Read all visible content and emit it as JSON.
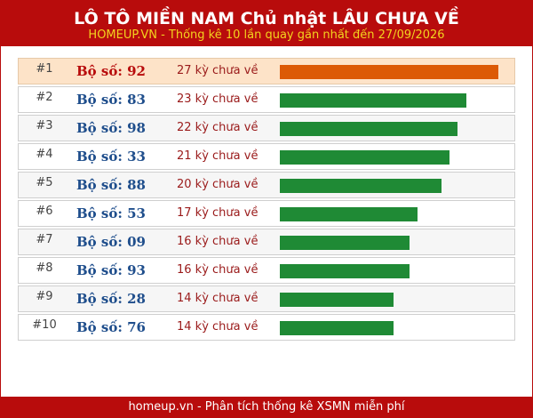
{
  "header": {
    "title": "LÔ TÔ MIỀN NAM Chủ nhật LÂU CHƯA VỀ",
    "subtitle": "HOMEUP.VN - Thống kê 10 lần quay gần nhất đến 27/09/2026"
  },
  "colors": {
    "brand": "#b80c0c",
    "subtitle": "#f3d31e",
    "top_bar": "#dc5a05",
    "bar": "#1f8a35",
    "top_row_bg": "#fde3c8"
  },
  "rows": [
    {
      "rank": "#1",
      "label": "Bộ số: 92",
      "gap": "27 kỳ chưa về",
      "days": 27
    },
    {
      "rank": "#2",
      "label": "Bộ số: 83",
      "gap": "23 kỳ chưa về",
      "days": 23
    },
    {
      "rank": "#3",
      "label": "Bộ số: 98",
      "gap": "22 kỳ chưa về",
      "days": 22
    },
    {
      "rank": "#4",
      "label": "Bộ số: 33",
      "gap": "21 kỳ chưa về",
      "days": 21
    },
    {
      "rank": "#5",
      "label": "Bộ số: 88",
      "gap": "20 kỳ chưa về",
      "days": 20
    },
    {
      "rank": "#6",
      "label": "Bộ số: 53",
      "gap": "17 kỳ chưa về",
      "days": 17
    },
    {
      "rank": "#7",
      "label": "Bộ số: 09",
      "gap": "16 kỳ chưa về",
      "days": 16
    },
    {
      "rank": "#8",
      "label": "Bộ số: 93",
      "gap": "16 kỳ chưa về",
      "days": 16
    },
    {
      "rank": "#9",
      "label": "Bộ số: 28",
      "gap": "14 kỳ chưa về",
      "days": 14
    },
    {
      "rank": "#10",
      "label": "Bộ số: 76",
      "gap": "14 kỳ chưa về",
      "days": 14
    }
  ],
  "footer": {
    "text": "homeup.vn - Phân tích thống kê XSMN miễn phí"
  }
}
